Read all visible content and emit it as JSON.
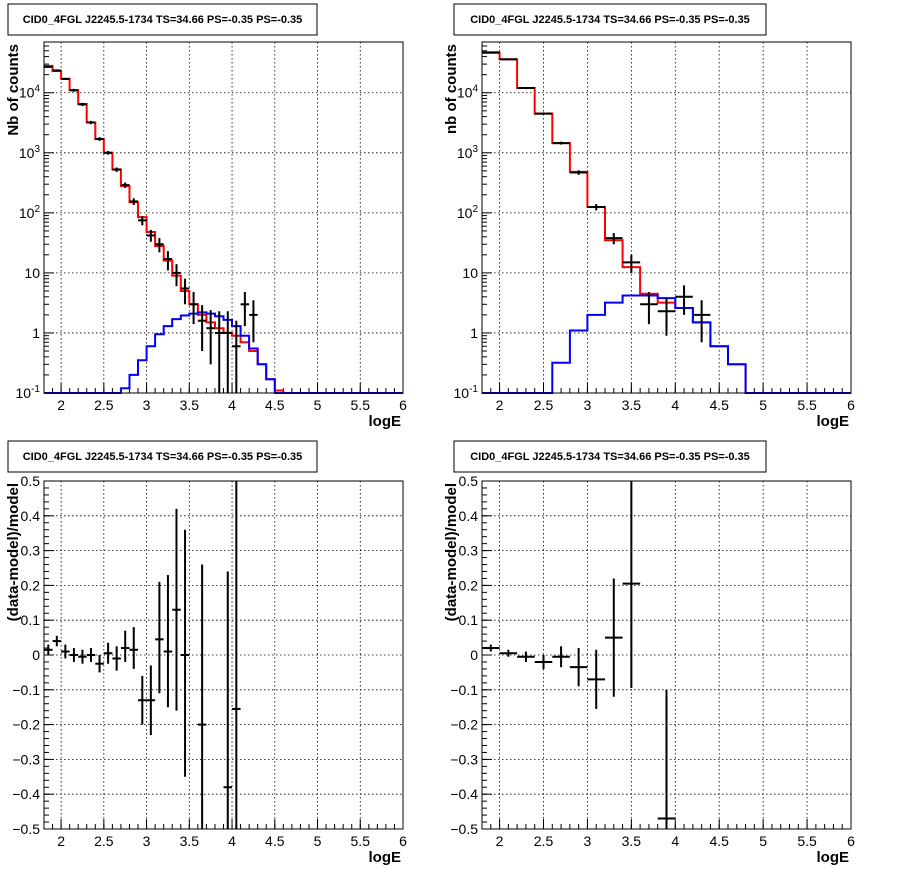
{
  "chart_data": [
    {
      "type": "step",
      "title": "CID0_4FGL J2245.5-1734 TS=34.66 PS=-0.35 PS=-0.35",
      "xlabel": "logE",
      "ylabel": "Nb of counts",
      "xlim": [
        1.8,
        6.0
      ],
      "ylim": [
        0.1,
        70000
      ],
      "yscale": "log",
      "grid": true,
      "xticks": [
        "2",
        "2.5",
        "3",
        "3.5",
        "4",
        "4.5",
        "5",
        "5.5",
        "6"
      ],
      "yticks": [
        "10^-1",
        "1",
        "10",
        "10^2",
        "10^3",
        "10^4"
      ],
      "binwidth": 0.1,
      "x": [
        1.8,
        1.9,
        2.0,
        2.1,
        2.2,
        2.3,
        2.4,
        2.5,
        2.6,
        2.7,
        2.8,
        2.9,
        3.0,
        3.1,
        3.2,
        3.3,
        3.4,
        3.5,
        3.6,
        3.7,
        3.8,
        3.9,
        4.0,
        4.1,
        4.2,
        4.3,
        4.4,
        4.5,
        4.6,
        4.7,
        4.8,
        4.9,
        5.0,
        5.1,
        5.2,
        5.3,
        5.4,
        5.5,
        5.6,
        5.7,
        5.8,
        5.9
      ],
      "series": [
        {
          "color": "#ff0000",
          "style": "step",
          "values": [
            28000,
            23000,
            17000,
            11000,
            6500,
            3200,
            1700,
            1000,
            530,
            280,
            150,
            85,
            48,
            28,
            16,
            9,
            5,
            3,
            2,
            1.5,
            1.2,
            1,
            0.9,
            0.7,
            0.5,
            0.3,
            0.17,
            0.11,
            0.1,
            0.1,
            0.1,
            0.1,
            0.1,
            0.1,
            0.1,
            0.1,
            0.1,
            0.1,
            0.1,
            0.1,
            0.1,
            0.1
          ]
        },
        {
          "color": "#0000ff",
          "style": "step",
          "values": [
            0.1,
            0.1,
            0.1,
            0.1,
            0.1,
            0.1,
            0.1,
            0.1,
            0.1,
            0.12,
            0.2,
            0.35,
            0.6,
            0.95,
            1.3,
            1.7,
            1.95,
            2.1,
            2.2,
            2.1,
            1.9,
            1.65,
            1.3,
            0.9,
            0.55,
            0.3,
            0.17,
            0.1,
            0.1,
            0.1,
            0.1,
            0.1,
            0.1,
            0.1,
            0.1,
            0.1,
            0.1,
            0.1,
            0.1,
            0.1,
            0.1,
            0.1
          ]
        },
        {
          "color": "#000000",
          "style": "errorbar",
          "points": [
            {
              "x": 1.85,
              "y": 27000,
              "lo": 26000,
              "hi": 28000
            },
            {
              "x": 1.95,
              "y": 23500,
              "lo": 22500,
              "hi": 24500
            },
            {
              "x": 2.05,
              "y": 17000,
              "lo": 16300,
              "hi": 17700
            },
            {
              "x": 2.15,
              "y": 11000,
              "lo": 10400,
              "hi": 11600
            },
            {
              "x": 2.25,
              "y": 6400,
              "lo": 6000,
              "hi": 6800
            },
            {
              "x": 2.35,
              "y": 3200,
              "lo": 3000,
              "hi": 3400
            },
            {
              "x": 2.45,
              "y": 1700,
              "lo": 1580,
              "hi": 1820
            },
            {
              "x": 2.55,
              "y": 1000,
              "lo": 930,
              "hi": 1070
            },
            {
              "x": 2.65,
              "y": 525,
              "lo": 480,
              "hi": 570
            },
            {
              "x": 2.75,
              "y": 290,
              "lo": 260,
              "hi": 320
            },
            {
              "x": 2.85,
              "y": 155,
              "lo": 135,
              "hi": 175
            },
            {
              "x": 2.95,
              "y": 75,
              "lo": 62,
              "hi": 88
            },
            {
              "x": 3.05,
              "y": 42,
              "lo": 33,
              "hi": 52
            },
            {
              "x": 3.15,
              "y": 30,
              "lo": 22,
              "hi": 38
            },
            {
              "x": 3.25,
              "y": 17,
              "lo": 11,
              "hi": 23
            },
            {
              "x": 3.35,
              "y": 10,
              "lo": 6,
              "hi": 14
            },
            {
              "x": 3.45,
              "y": 5.5,
              "lo": 3,
              "hi": 8
            },
            {
              "x": 3.55,
              "y": 3,
              "lo": 1.4,
              "hi": 4.8
            },
            {
              "x": 3.65,
              "y": 1.6,
              "lo": 0.5,
              "hi": 2.9
            },
            {
              "x": 3.75,
              "y": 1.2,
              "lo": 0.3,
              "hi": 2.4
            },
            {
              "x": 3.85,
              "y": 1,
              "lo": 0.1,
              "hi": 2.3
            },
            {
              "x": 3.95,
              "y": 1,
              "lo": 0.1,
              "hi": 2.3
            },
            {
              "x": 4.05,
              "y": 0.6,
              "lo": 0.1,
              "hi": 1.6
            },
            {
              "x": 4.15,
              "y": 3,
              "lo": 1.3,
              "hi": 4.8
            },
            {
              "x": 4.25,
              "y": 2,
              "lo": 0.7,
              "hi": 3.5
            }
          ]
        }
      ]
    },
    {
      "type": "step",
      "title": "CID0_4FGL J2245.5-1734 TS=34.66 PS=-0.35 PS=-0.35",
      "xlabel": "logE",
      "ylabel": "nb of counts",
      "xlim": [
        1.8,
        6.0
      ],
      "ylim": [
        0.1,
        70000
      ],
      "yscale": "log",
      "grid": true,
      "xticks": [
        "2",
        "2.5",
        "3",
        "3.5",
        "4",
        "4.5",
        "5",
        "5.5",
        "6"
      ],
      "yticks": [
        "10^-1",
        "1",
        "10",
        "10^2",
        "10^3",
        "10^4"
      ],
      "binwidth": 0.2,
      "x": [
        1.8,
        2.0,
        2.2,
        2.4,
        2.6,
        2.8,
        3.0,
        3.2,
        3.4,
        3.6,
        3.8,
        4.0,
        4.2,
        4.4,
        4.6,
        4.8,
        5.0,
        5.2,
        5.4,
        5.6,
        5.8
      ],
      "series": [
        {
          "color": "#ff0000",
          "style": "step",
          "values": [
            46000,
            36000,
            12000,
            4500,
            1450,
            480,
            125,
            35,
            12.5,
            4.5,
            3.2,
            2.6,
            1.5,
            0.6,
            0.3,
            0.1,
            0.1,
            0.1,
            0.1,
            0.1,
            0.1
          ]
        },
        {
          "color": "#0000ff",
          "style": "step",
          "values": [
            0.1,
            0.1,
            0.1,
            0.1,
            0.32,
            1.1,
            2.0,
            3.2,
            4.2,
            4.2,
            3.8,
            2.6,
            1.5,
            0.6,
            0.3,
            0.1,
            0.1,
            0.1,
            0.1,
            0.1,
            0.1
          ]
        },
        {
          "color": "#000000",
          "style": "errorbar",
          "points": [
            {
              "x": 1.9,
              "y": 47000,
              "lo": 46000,
              "hi": 48000
            },
            {
              "x": 2.1,
              "y": 36000,
              "lo": 35200,
              "hi": 36800
            },
            {
              "x": 2.3,
              "y": 12000,
              "lo": 11500,
              "hi": 12500
            },
            {
              "x": 2.5,
              "y": 4500,
              "lo": 4300,
              "hi": 4700
            },
            {
              "x": 2.7,
              "y": 1450,
              "lo": 1370,
              "hi": 1530
            },
            {
              "x": 2.9,
              "y": 470,
              "lo": 430,
              "hi": 510
            },
            {
              "x": 3.1,
              "y": 125,
              "lo": 110,
              "hi": 140
            },
            {
              "x": 3.3,
              "y": 38,
              "lo": 30,
              "hi": 46
            },
            {
              "x": 3.5,
              "y": 15,
              "lo": 10,
              "hi": 20
            },
            {
              "x": 3.7,
              "y": 3,
              "lo": 1.4,
              "hi": 4.8
            },
            {
              "x": 3.9,
              "y": 2.3,
              "lo": 0.9,
              "hi": 3.9
            },
            {
              "x": 4.1,
              "y": 4,
              "lo": 2,
              "hi": 6.2
            },
            {
              "x": 4.3,
              "y": 2,
              "lo": 0.7,
              "hi": 3.5
            }
          ]
        }
      ]
    },
    {
      "type": "scatter",
      "title": "CID0_4FGL J2245.5-1734 TS=34.66 PS=-0.35 PS=-0.35",
      "xlabel": "logE",
      "ylabel": "(data-model)/model",
      "xlim": [
        1.8,
        6.0
      ],
      "ylim": [
        -0.5,
        0.5
      ],
      "grid": true,
      "xticks": [
        "2",
        "2.5",
        "3",
        "3.5",
        "4",
        "4.5",
        "5",
        "5.5",
        "6"
      ],
      "yticks": [
        "-0.5",
        "-0.4",
        "-0.3",
        "-0.2",
        "-0.1",
        "0",
        "0.1",
        "0.2",
        "0.3",
        "0.4",
        "0.5"
      ],
      "halfwidth": 0.05,
      "points": [
        {
          "x": 1.85,
          "y": 0.015,
          "lo": 0.0,
          "hi": 0.03
        },
        {
          "x": 1.95,
          "y": 0.04,
          "lo": 0.025,
          "hi": 0.055
        },
        {
          "x": 2.05,
          "y": 0.01,
          "lo": -0.01,
          "hi": 0.03
        },
        {
          "x": 2.15,
          "y": 0.0,
          "lo": -0.02,
          "hi": 0.02
        },
        {
          "x": 2.25,
          "y": -0.005,
          "lo": -0.025,
          "hi": 0.015
        },
        {
          "x": 2.35,
          "y": 0.0,
          "lo": -0.02,
          "hi": 0.02
        },
        {
          "x": 2.45,
          "y": -0.025,
          "lo": -0.05,
          "hi": 0.0
        },
        {
          "x": 2.55,
          "y": 0.005,
          "lo": -0.025,
          "hi": 0.035
        },
        {
          "x": 2.65,
          "y": -0.01,
          "lo": -0.045,
          "hi": 0.025
        },
        {
          "x": 2.75,
          "y": 0.02,
          "lo": -0.02,
          "hi": 0.07
        },
        {
          "x": 2.85,
          "y": 0.015,
          "lo": -0.04,
          "hi": 0.08
        },
        {
          "x": 2.95,
          "y": -0.13,
          "lo": -0.2,
          "hi": -0.06
        },
        {
          "x": 3.05,
          "y": -0.13,
          "lo": -0.23,
          "hi": -0.03
        },
        {
          "x": 3.15,
          "y": 0.045,
          "lo": -0.11,
          "hi": 0.21
        },
        {
          "x": 3.25,
          "y": 0.01,
          "lo": -0.15,
          "hi": 0.23
        },
        {
          "x": 3.35,
          "y": 0.13,
          "lo": -0.16,
          "hi": 0.42
        },
        {
          "x": 3.45,
          "y": 0.0,
          "lo": -0.35,
          "hi": 0.36
        },
        {
          "x": 3.65,
          "y": -0.2,
          "lo": -0.5,
          "hi": 0.26
        },
        {
          "x": 3.95,
          "y": -0.38,
          "lo": -0.5,
          "hi": 0.24
        },
        {
          "x": 4.05,
          "y": -0.155,
          "lo": -0.5,
          "hi": 0.5
        }
      ]
    },
    {
      "type": "scatter",
      "title": "CID0_4FGL J2245.5-1734 TS=34.66 PS=-0.35 PS=-0.35",
      "xlabel": "logE",
      "ylabel": "(data-model)/model",
      "xlim": [
        1.8,
        6.0
      ],
      "ylim": [
        -0.5,
        0.5
      ],
      "grid": true,
      "xticks": [
        "2",
        "2.5",
        "3",
        "3.5",
        "4",
        "4.5",
        "5",
        "5.5",
        "6"
      ],
      "yticks": [
        "-0.5",
        "-0.4",
        "-0.3",
        "-0.2",
        "-0.1",
        "0",
        "0.1",
        "0.2",
        "0.3",
        "0.4",
        "0.5"
      ],
      "halfwidth": 0.1,
      "points": [
        {
          "x": 1.9,
          "y": 0.02,
          "lo": 0.01,
          "hi": 0.03
        },
        {
          "x": 2.1,
          "y": 0.005,
          "lo": -0.005,
          "hi": 0.015
        },
        {
          "x": 2.3,
          "y": -0.005,
          "lo": -0.02,
          "hi": 0.01
        },
        {
          "x": 2.5,
          "y": -0.02,
          "lo": -0.04,
          "hi": 0.0
        },
        {
          "x": 2.7,
          "y": -0.005,
          "lo": -0.035,
          "hi": 0.025
        },
        {
          "x": 2.9,
          "y": -0.035,
          "lo": -0.09,
          "hi": 0.02
        },
        {
          "x": 3.1,
          "y": -0.07,
          "lo": -0.155,
          "hi": 0.015
        },
        {
          "x": 3.3,
          "y": 0.05,
          "lo": -0.12,
          "hi": 0.22
        },
        {
          "x": 3.5,
          "y": 0.205,
          "lo": -0.095,
          "hi": 0.5
        },
        {
          "x": 3.9,
          "y": -0.47,
          "lo": -0.5,
          "hi": -0.1
        }
      ]
    }
  ]
}
